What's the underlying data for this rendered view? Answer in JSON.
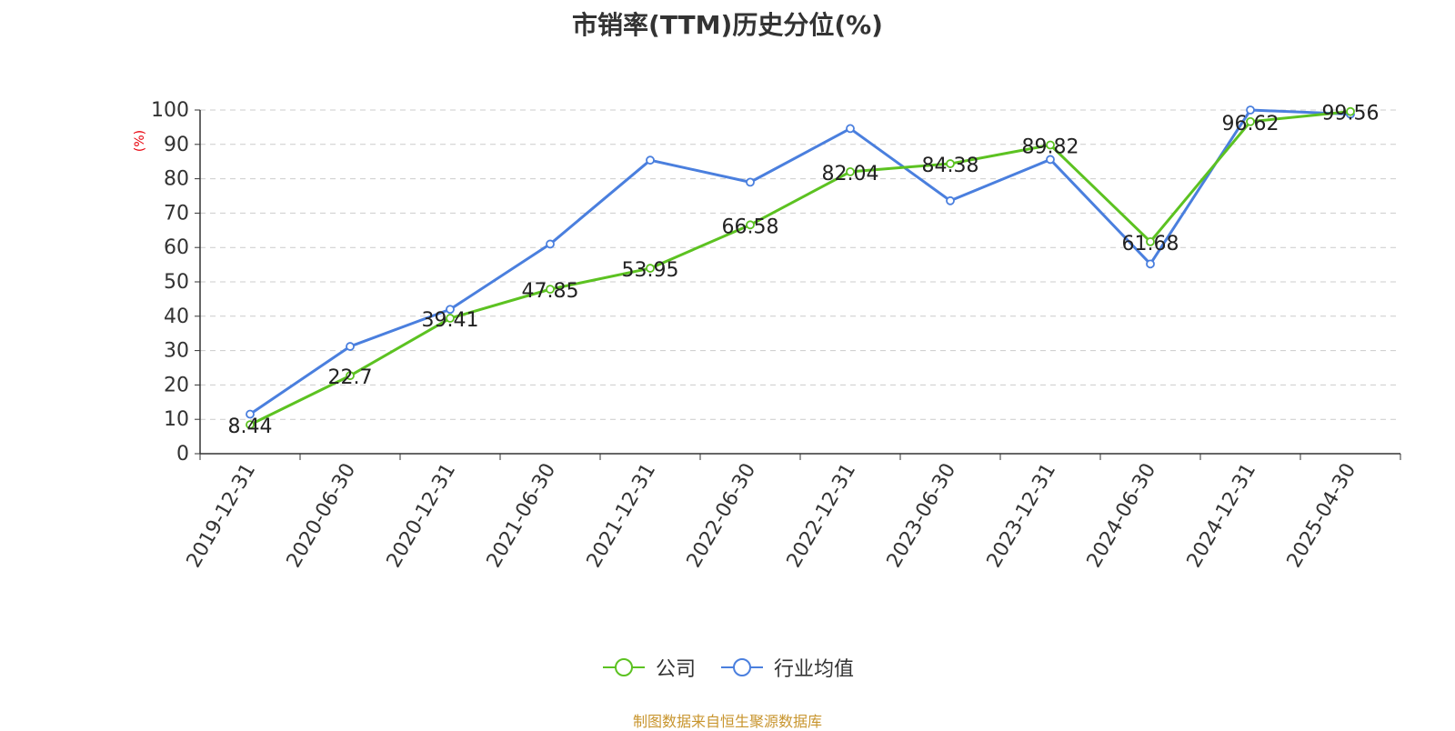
{
  "title": "市销率(TTM)历史分位(%)",
  "source_note": "制图数据来自恒生聚源数据库",
  "colors": {
    "company": "#5cc221",
    "industry": "#4a7fde"
  },
  "chart_data": {
    "type": "line",
    "title": "市销率(TTM)历史分位(%)",
    "xlabel": "",
    "ylabel": "(%)",
    "ylim": [
      0,
      100
    ],
    "yticks": [
      0,
      10,
      20,
      30,
      40,
      50,
      60,
      70,
      80,
      90,
      100
    ],
    "grid": true,
    "legend_position": "bottom",
    "categories": [
      "2019-12-31",
      "2020-06-30",
      "2020-12-31",
      "2021-06-30",
      "2021-12-31",
      "2022-06-30",
      "2022-12-31",
      "2023-06-30",
      "2023-12-31",
      "2024-06-30",
      "2024-12-31",
      "2025-04-30"
    ],
    "series": [
      {
        "name": "公司",
        "color": "#5cc221",
        "show_labels": true,
        "values": [
          8.44,
          22.7,
          39.41,
          47.85,
          53.95,
          66.58,
          82.04,
          84.38,
          89.82,
          61.68,
          96.62,
          99.56
        ],
        "labels": [
          "8.44",
          "22.7",
          "39.41",
          "47.85",
          "53.95",
          "66.58",
          "82.04",
          "84.38",
          "89.82",
          "61.68",
          "96.62",
          "99.56"
        ]
      },
      {
        "name": "行业均值",
        "color": "#4a7fde",
        "show_labels": false,
        "values": [
          11.5,
          31.2,
          42.0,
          61.0,
          85.4,
          79.0,
          94.6,
          73.6,
          85.6,
          55.2,
          100.0,
          98.8
        ]
      }
    ]
  }
}
